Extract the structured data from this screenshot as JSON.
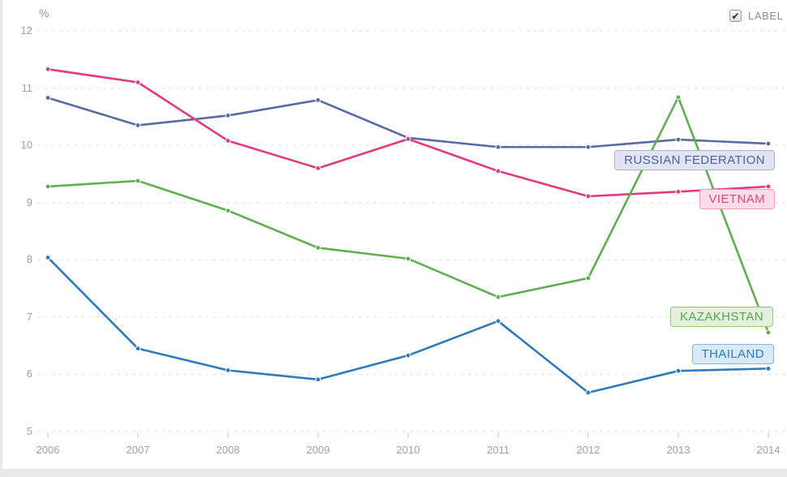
{
  "chart": {
    "unit_label": "%",
    "toggle_label": "LABEL",
    "toggle_checked": true,
    "check_glyph": "✔"
  },
  "chart_data": {
    "type": "line",
    "x": [
      2006,
      2007,
      2008,
      2009,
      2010,
      2011,
      2012,
      2013,
      2014
    ],
    "ylabel": "%",
    "ylim": [
      5,
      12
    ],
    "yticks": [
      12,
      11,
      10,
      9,
      8,
      7,
      6,
      5
    ],
    "grid": "horizontal-dashed",
    "legend_position": "inline-right-label-boxes",
    "series": [
      {
        "name": "RUSSIAN FEDERATION",
        "color": "#5a6aa2",
        "label_text_color": "#4f5f9f",
        "label_bg": "#e1e4f2",
        "label_border": "#a9b2d6",
        "values": [
          10.83,
          10.35,
          10.52,
          10.79,
          10.13,
          9.97,
          9.97,
          10.1,
          10.03
        ]
      },
      {
        "name": "VIETNAM",
        "color": "#e23b80",
        "label_text_color": "#e2487f",
        "label_bg": "#fbdce9",
        "label_border": "#ef9ebd",
        "values": [
          11.33,
          11.1,
          10.08,
          9.6,
          10.11,
          9.55,
          9.11,
          9.19,
          9.28
        ]
      },
      {
        "name": "KAZAKHSTAN",
        "color": "#62ae52",
        "label_text_color": "#5aa44b",
        "label_bg": "#e3f0dd",
        "label_border": "#93c783",
        "values": [
          9.28,
          9.38,
          8.86,
          8.21,
          8.02,
          7.35,
          7.68,
          10.84,
          6.73
        ]
      },
      {
        "name": "THAILAND",
        "color": "#2e7abc",
        "label_text_color": "#2d7abc",
        "label_bg": "#d8e9f8",
        "label_border": "#85b4e0",
        "values": [
          8.04,
          6.45,
          6.07,
          5.91,
          6.33,
          6.93,
          5.68,
          6.06,
          6.1
        ]
      }
    ]
  }
}
